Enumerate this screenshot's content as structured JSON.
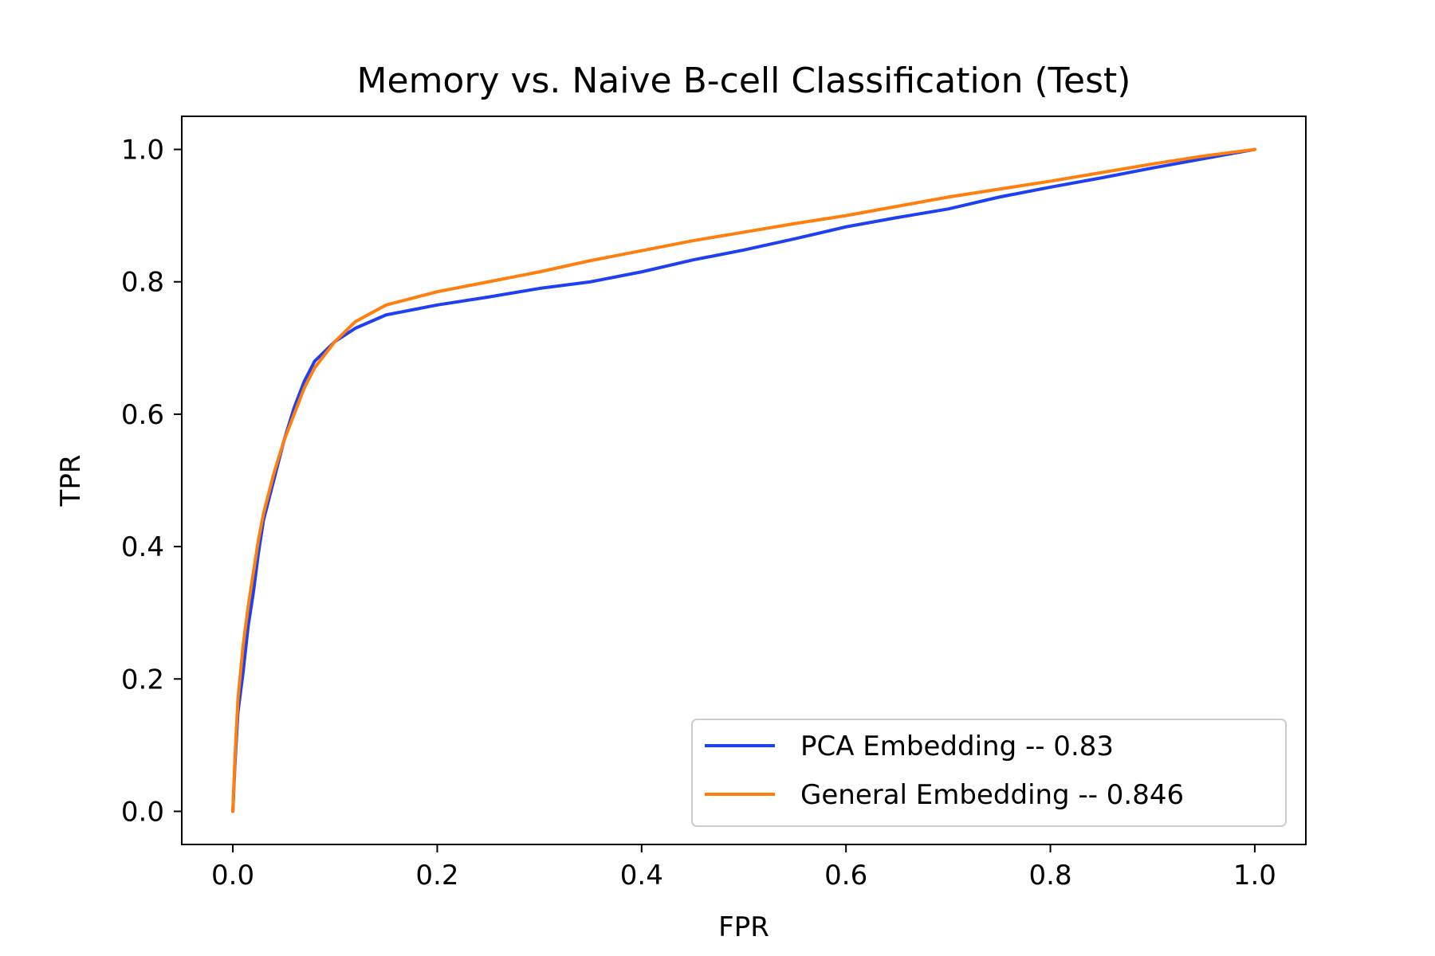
{
  "chart_data": {
    "type": "line",
    "title": "Memory vs. Naive B-cell Classification (Test)",
    "xlabel": "FPR",
    "ylabel": "TPR",
    "xlim": [
      -0.05,
      1.05
    ],
    "ylim": [
      -0.05,
      1.05
    ],
    "xticks": [
      0.0,
      0.2,
      0.4,
      0.6,
      0.8,
      1.0
    ],
    "xtick_labels": [
      "0.0",
      "0.2",
      "0.4",
      "0.6",
      "0.8",
      "1.0"
    ],
    "yticks": [
      0.0,
      0.2,
      0.4,
      0.6,
      0.8,
      1.0
    ],
    "ytick_labels": [
      "0.0",
      "0.2",
      "0.4",
      "0.6",
      "0.8",
      "1.0"
    ],
    "grid": false,
    "legend_position": "lower-right",
    "series": [
      {
        "name": "PCA Embedding -- 0.83",
        "color": "#1f3ff2",
        "x": [
          0.0,
          0.002,
          0.005,
          0.01,
          0.015,
          0.02,
          0.025,
          0.03,
          0.04,
          0.05,
          0.06,
          0.07,
          0.08,
          0.1,
          0.12,
          0.15,
          0.2,
          0.25,
          0.3,
          0.35,
          0.4,
          0.45,
          0.5,
          0.55,
          0.6,
          0.65,
          0.7,
          0.75,
          0.8,
          0.85,
          0.9,
          0.95,
          1.0
        ],
        "y": [
          0.0,
          0.07,
          0.15,
          0.21,
          0.28,
          0.33,
          0.39,
          0.44,
          0.5,
          0.56,
          0.61,
          0.65,
          0.68,
          0.71,
          0.73,
          0.75,
          0.765,
          0.777,
          0.79,
          0.8,
          0.815,
          0.833,
          0.848,
          0.865,
          0.883,
          0.897,
          0.91,
          0.928,
          0.943,
          0.957,
          0.972,
          0.986,
          1.0
        ]
      },
      {
        "name": "General Embedding -- 0.846",
        "color": "#ff7f0e",
        "x": [
          0.0,
          0.002,
          0.005,
          0.01,
          0.015,
          0.02,
          0.025,
          0.03,
          0.04,
          0.05,
          0.06,
          0.07,
          0.08,
          0.1,
          0.12,
          0.15,
          0.2,
          0.25,
          0.3,
          0.35,
          0.4,
          0.45,
          0.5,
          0.55,
          0.6,
          0.65,
          0.7,
          0.75,
          0.8,
          0.85,
          0.9,
          0.95,
          1.0
        ],
        "y": [
          0.0,
          0.08,
          0.17,
          0.25,
          0.31,
          0.36,
          0.41,
          0.45,
          0.51,
          0.56,
          0.6,
          0.64,
          0.67,
          0.71,
          0.74,
          0.765,
          0.785,
          0.8,
          0.815,
          0.832,
          0.847,
          0.862,
          0.875,
          0.888,
          0.9,
          0.914,
          0.928,
          0.94,
          0.952,
          0.965,
          0.978,
          0.99,
          1.0
        ]
      }
    ]
  }
}
